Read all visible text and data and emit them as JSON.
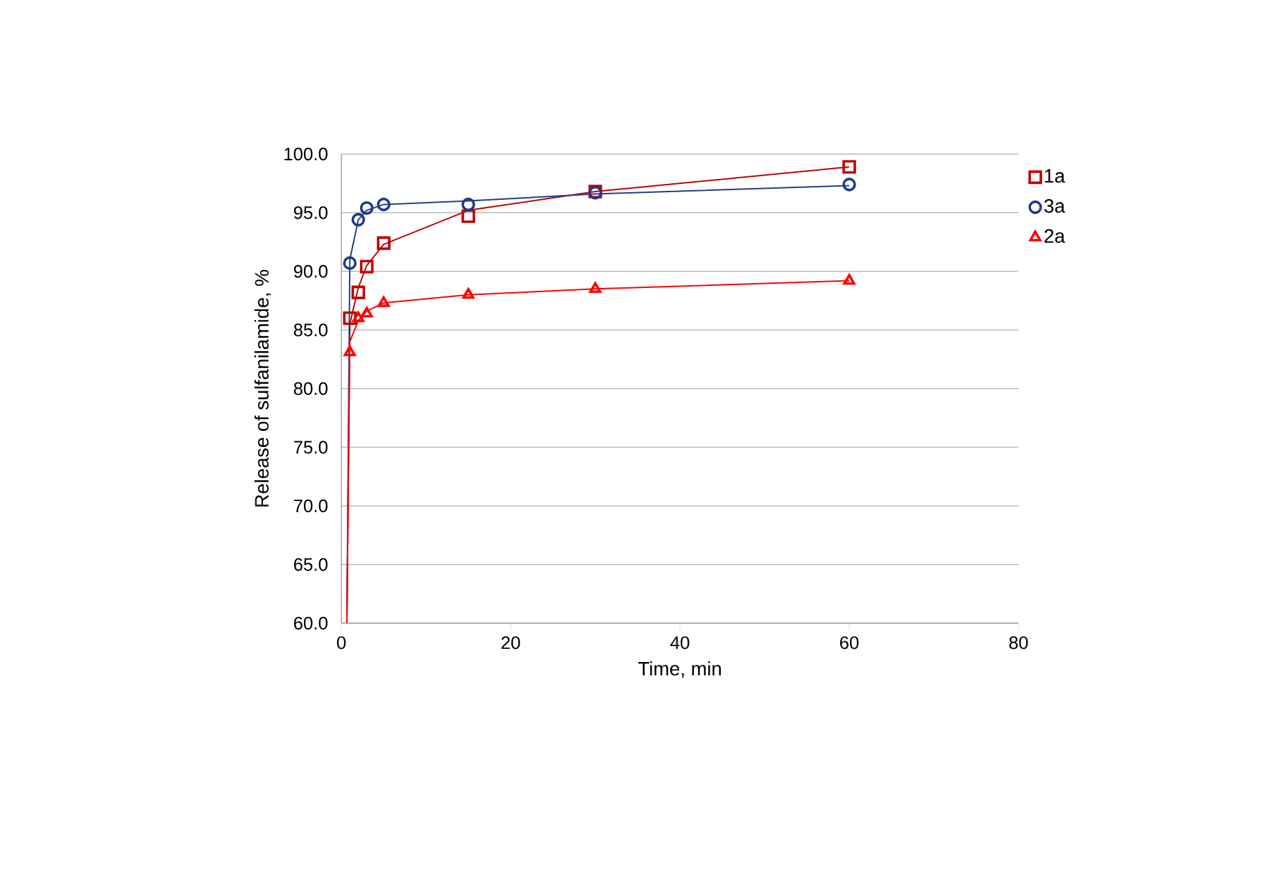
{
  "chart_data": {
    "type": "scatter",
    "xlabel": "Time, min",
    "ylabel": "Release of sulfanilamide, %",
    "xlim": [
      0,
      80
    ],
    "xticks": [
      0,
      20,
      40,
      60,
      80
    ],
    "ylim": [
      60,
      100
    ],
    "yticks": [
      {
        "value": 60,
        "label": "60.0"
      },
      {
        "value": 65,
        "label": "65.0"
      },
      {
        "value": 70,
        "label": "70.0"
      },
      {
        "value": 75,
        "label": "75.0"
      },
      {
        "value": 80,
        "label": "80.0"
      },
      {
        "value": 85,
        "label": "85.0"
      },
      {
        "value": 90,
        "label": "90.0"
      },
      {
        "value": 95,
        "label": "95.0"
      },
      {
        "value": 100,
        "label": "100.0"
      }
    ],
    "grid": "y",
    "legend": "right",
    "series": [
      {
        "name": "1a",
        "marker": "square",
        "color": "#c00000",
        "x": [
          1,
          2,
          3,
          5,
          15,
          30,
          60
        ],
        "values": [
          86.0,
          88.2,
          90.4,
          92.4,
          94.7,
          96.8,
          98.9
        ]
      },
      {
        "name": "3a",
        "marker": "circle",
        "color": "#1f3c88",
        "x": [
          1,
          2,
          3,
          5,
          15,
          30,
          60
        ],
        "values": [
          90.7,
          94.4,
          95.4,
          95.7,
          95.7,
          96.7,
          97.4
        ]
      },
      {
        "name": "2a",
        "marker": "triangle",
        "color": "#ff0000",
        "x": [
          1,
          2,
          3,
          5,
          15,
          30,
          60
        ],
        "values": [
          83.1,
          86.0,
          86.4,
          87.3,
          88.0,
          88.5,
          89.2
        ]
      },
      {
        "type": "line",
        "marker": "none",
        "color": "#c00000",
        "x": [
          0.65,
          1,
          2,
          3,
          5,
          15,
          30,
          60
        ],
        "values": [
          60,
          85.5,
          88.6,
          90.5,
          92.3,
          95.2,
          96.8,
          98.9
        ]
      },
      {
        "type": "line",
        "marker": "none",
        "color": "#1f3c88",
        "x": [
          0.65,
          1,
          2,
          3,
          5,
          15,
          30,
          60
        ],
        "values": [
          60,
          91.0,
          94.4,
          95.2,
          95.7,
          96.0,
          96.6,
          97.3
        ]
      },
      {
        "type": "line",
        "marker": "none",
        "color": "#ff0000",
        "x": [
          0.65,
          1,
          2,
          3,
          5,
          15,
          30,
          60
        ],
        "values": [
          60,
          84.0,
          85.8,
          86.6,
          87.3,
          88.0,
          88.5,
          89.2
        ]
      }
    ]
  }
}
